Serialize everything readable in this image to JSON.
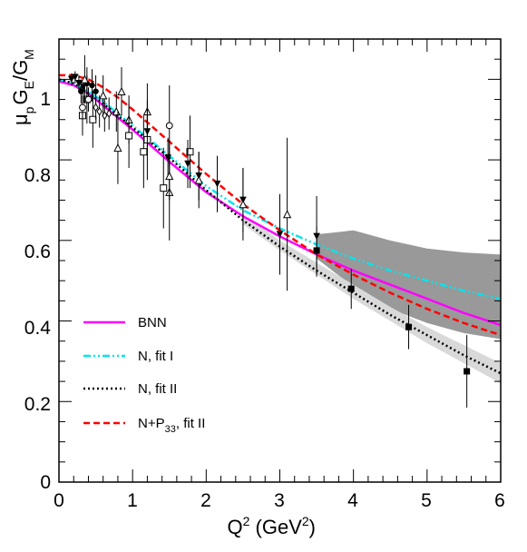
{
  "chart_data": {
    "type": "scatter",
    "title": "",
    "xlabel": "Q",
    "xlabel_sup": "2",
    "xlabel_unit_open": " (GeV",
    "xlabel_unit_sup": "2",
    "xlabel_unit_close": ")",
    "ylabel_parts": [
      "μ",
      "p",
      "G",
      "E",
      "/G",
      "M"
    ],
    "xlim": [
      0,
      6
    ],
    "ylim": [
      0,
      1.1
    ],
    "xticks": [
      "0",
      "1",
      "2",
      "3",
      "4",
      "5",
      "6"
    ],
    "yticks": [
      "0",
      "0.2",
      "0.4",
      "0.6",
      "0.8",
      "1"
    ],
    "xtick_values": [
      0,
      1,
      2,
      3,
      4,
      5,
      6
    ],
    "ytick_values": [
      0,
      0.2,
      0.4,
      0.6,
      0.8,
      1.0
    ],
    "legend_position": "bottom-left",
    "series": [
      {
        "name": "BNN",
        "style": "solid",
        "color": "#ff00ff",
        "x": [
          0,
          0.2,
          0.4,
          0.6,
          0.8,
          1.0,
          1.5,
          2.0,
          2.5,
          3.0,
          3.5,
          4.0,
          4.5,
          5.0,
          5.5,
          6.0
        ],
        "y": [
          0.995,
          0.985,
          0.965,
          0.935,
          0.905,
          0.875,
          0.795,
          0.72,
          0.66,
          0.61,
          0.565,
          0.525,
          0.49,
          0.455,
          0.42,
          0.39
        ]
      },
      {
        "name": "N, fit I",
        "style": "dashdot",
        "color": "#00e5ee",
        "x": [
          0,
          0.2,
          0.4,
          0.6,
          0.8,
          1.0,
          1.5,
          2.0,
          2.5,
          3.0,
          3.5,
          4.0,
          4.5,
          5.0,
          5.5,
          6.0
        ],
        "y": [
          1.0,
          0.99,
          0.97,
          0.945,
          0.915,
          0.885,
          0.81,
          0.735,
          0.675,
          0.63,
          0.59,
          0.555,
          0.525,
          0.5,
          0.475,
          0.455
        ]
      },
      {
        "name": "N, fit II",
        "style": "dotted",
        "color": "#000000",
        "x": [
          0,
          0.2,
          0.4,
          0.6,
          0.8,
          1.0,
          1.5,
          2.0,
          2.5,
          3.0,
          3.5,
          4.0,
          4.5,
          5.0,
          5.5,
          6.0
        ],
        "y": [
          1.0,
          0.99,
          0.965,
          0.94,
          0.91,
          0.88,
          0.805,
          0.725,
          0.65,
          0.585,
          0.525,
          0.47,
          0.415,
          0.365,
          0.315,
          0.27
        ]
      },
      {
        "name": "N+P",
        "name_sub": "33",
        "name_suffix": ", fit II",
        "style": "dashed",
        "color": "#ff0000",
        "x": [
          0,
          0.2,
          0.4,
          0.6,
          0.8,
          1.0,
          1.5,
          2.0,
          2.5,
          3.0,
          3.5,
          4.0,
          4.5,
          5.0,
          5.5,
          6.0
        ],
        "y": [
          1.01,
          1.01,
          1.0,
          0.98,
          0.955,
          0.925,
          0.845,
          0.765,
          0.69,
          0.625,
          0.565,
          0.515,
          0.47,
          0.43,
          0.395,
          0.365
        ]
      }
    ],
    "bands": [
      {
        "name": "fit I band",
        "color": "#999999",
        "x": [
          3.5,
          4.0,
          4.5,
          5.0,
          5.5,
          6.0
        ],
        "lower": [
          0.555,
          0.485,
          0.43,
          0.395,
          0.37,
          0.355
        ],
        "upper": [
          0.615,
          0.625,
          0.6,
          0.58,
          0.57,
          0.565
        ]
      },
      {
        "name": "fit II band",
        "color": "#d9d9d9",
        "x": [
          2.5,
          3.0,
          3.5,
          4.0,
          4.5,
          5.0,
          5.5,
          6.0
        ],
        "lower": [
          0.64,
          0.575,
          0.515,
          0.455,
          0.4,
          0.345,
          0.295,
          0.245
        ],
        "upper": [
          0.665,
          0.6,
          0.545,
          0.49,
          0.435,
          0.385,
          0.34,
          0.295
        ]
      }
    ],
    "data_points": [
      {
        "marker": "triangle-down",
        "x": 0.17,
        "y": 1.0,
        "err": 0.015
      },
      {
        "marker": "triangle-down",
        "x": 0.22,
        "y": 1.005,
        "err": 0.015
      },
      {
        "marker": "triangle-down",
        "x": 0.27,
        "y": 0.99,
        "err": 0.02
      },
      {
        "marker": "triangle-down",
        "x": 0.33,
        "y": 0.98,
        "err": 0.02
      },
      {
        "marker": "circle-filled",
        "x": 0.3,
        "y": 0.97,
        "err": 0.03
      },
      {
        "marker": "circle-filled",
        "x": 0.38,
        "y": 0.99,
        "err": 0.04
      },
      {
        "marker": "circle-filled",
        "x": 0.45,
        "y": 0.985,
        "err": 0.04
      },
      {
        "marker": "circle-filled",
        "x": 0.5,
        "y": 0.97,
        "err": 0.04
      },
      {
        "marker": "square-open",
        "x": 0.32,
        "y": 0.91,
        "err": 0.05
      },
      {
        "marker": "square-open",
        "x": 0.38,
        "y": 0.95,
        "err": 0.06
      },
      {
        "marker": "square-open",
        "x": 0.46,
        "y": 0.9,
        "err": 0.07
      },
      {
        "marker": "diamond-open",
        "x": 0.5,
        "y": 0.93,
        "err": 0.03
      },
      {
        "marker": "diamond-open",
        "x": 0.55,
        "y": 0.92,
        "err": 0.04
      },
      {
        "marker": "diamond-open",
        "x": 0.62,
        "y": 0.91,
        "err": 0.04
      },
      {
        "marker": "diamond-open",
        "x": 0.68,
        "y": 0.915,
        "err": 0.04
      },
      {
        "marker": "circle-open",
        "x": 0.32,
        "y": 0.93,
        "err": 0.03
      },
      {
        "marker": "circle-open",
        "x": 0.4,
        "y": 0.95,
        "err": 0.03
      },
      {
        "marker": "triangle-up-open",
        "x": 0.35,
        "y": 1.0,
        "err": 0.06
      },
      {
        "marker": "triangle-up-open",
        "x": 0.6,
        "y": 0.96,
        "err": 0.05
      },
      {
        "marker": "triangle-up-open",
        "x": 0.78,
        "y": 0.92,
        "err": 0.05
      },
      {
        "marker": "triangle-up-open",
        "x": 0.85,
        "y": 0.97,
        "err": 0.06
      },
      {
        "marker": "triangle-up-open",
        "x": 0.95,
        "y": 0.9,
        "err": 0.06
      },
      {
        "marker": "triangle-up-open",
        "x": 1.2,
        "y": 0.92,
        "err": 0.07
      },
      {
        "marker": "triangle-up-open",
        "x": 0.8,
        "y": 0.83,
        "err": 0.09
      },
      {
        "marker": "square-open",
        "x": 0.95,
        "y": 0.86,
        "err": 0.08
      },
      {
        "marker": "square-open",
        "x": 1.15,
        "y": 0.82,
        "err": 0.09
      },
      {
        "marker": "square-open",
        "x": 1.2,
        "y": 0.85,
        "err": 0.1
      },
      {
        "marker": "square-open",
        "x": 1.42,
        "y": 0.73,
        "err": 0.1
      },
      {
        "marker": "triangle-up-open",
        "x": 1.5,
        "y": 0.72,
        "err": 0.12
      },
      {
        "marker": "square-open",
        "x": 1.78,
        "y": 0.82,
        "err": 0.09
      },
      {
        "marker": "circle-open",
        "x": 1.5,
        "y": 0.885,
        "err": 0.1
      },
      {
        "marker": "triangle-down",
        "x": 1.2,
        "y": 0.87,
        "err": 0.06
      },
      {
        "marker": "triangle-down",
        "x": 1.48,
        "y": 0.805,
        "err": 0.05
      },
      {
        "marker": "triangle-down",
        "x": 1.75,
        "y": 0.79,
        "err": 0.06
      },
      {
        "marker": "triangle-down",
        "x": 1.9,
        "y": 0.76,
        "err": 0.06
      },
      {
        "marker": "triangle-down",
        "x": 2.15,
        "y": 0.74,
        "err": 0.07
      },
      {
        "marker": "triangle-down",
        "x": 2.5,
        "y": 0.7,
        "err": 0.08
      },
      {
        "marker": "triangle-down",
        "x": 3.0,
        "y": 0.615,
        "err": 0.1
      },
      {
        "marker": "triangle-down",
        "x": 3.5,
        "y": 0.61,
        "err": 0.1
      },
      {
        "marker": "triangle-up-open",
        "x": 1.5,
        "y": 0.76,
        "err": 0.06
      },
      {
        "marker": "triangle-up-open",
        "x": 1.9,
        "y": 0.75,
        "err": 0.07
      },
      {
        "marker": "triangle-up-open",
        "x": 3.1,
        "y": 0.665,
        "err": 0.19
      },
      {
        "marker": "triangle-up-open",
        "x": 2.5,
        "y": 0.69,
        "err": 0.09
      },
      {
        "marker": "square-filled",
        "x": 3.5,
        "y": 0.575,
        "err": 0.06
      },
      {
        "marker": "square-filled",
        "x": 3.97,
        "y": 0.48,
        "err": 0.05
      },
      {
        "marker": "square-filled",
        "x": 4.75,
        "y": 0.385,
        "err": 0.055
      },
      {
        "marker": "square-filled",
        "x": 5.54,
        "y": 0.275,
        "err": 0.09
      }
    ]
  }
}
